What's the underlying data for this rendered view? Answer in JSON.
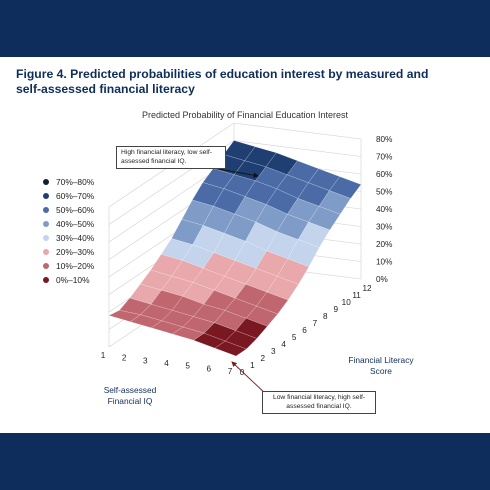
{
  "figure_title": "Figure 4. Predicted probabilities of education interest by measured and self-assessed financial literacy",
  "colors": {
    "band": "#0e2d5c",
    "title": "#0e2d5c"
  },
  "chart_data": {
    "type": "surface",
    "title": "Predicted Probability of Financial Education Interest",
    "x_axis_label": "Financial Literacy Score",
    "y_axis_label": "Self-assessed Financial IQ",
    "z_axis_label": "",
    "x_ticks": [
      "0",
      "1",
      "2",
      "3",
      "4",
      "5",
      "6",
      "7",
      "8",
      "9",
      "10",
      "11",
      "12"
    ],
    "y_ticks": [
      "1",
      "2",
      "3",
      "4",
      "5",
      "6",
      "7"
    ],
    "z_ticks": [
      "0%",
      "10%",
      "20%",
      "30%",
      "40%",
      "50%",
      "60%",
      "70%",
      "80%"
    ],
    "z_range": [
      0,
      80
    ],
    "legend": [
      {
        "label": "70%–80%",
        "color": "#0f1f38"
      },
      {
        "label": "60%–70%",
        "color": "#1f3f73"
      },
      {
        "label": "50%–60%",
        "color": "#4a6ba6"
      },
      {
        "label": "40%–50%",
        "color": "#7f9cc8"
      },
      {
        "label": "30%–40%",
        "color": "#c3d4ec"
      },
      {
        "label": "20%–30%",
        "color": "#e8a8ac"
      },
      {
        "label": "10%–20%",
        "color": "#c0666f"
      },
      {
        "label": "0%–10%",
        "color": "#7a1822"
      }
    ],
    "values": [
      [
        18,
        17,
        20,
        24,
        28,
        33,
        38,
        45,
        52,
        58,
        62,
        66,
        70
      ],
      [
        16,
        16,
        18,
        22,
        26,
        31,
        36,
        43,
        50,
        56,
        60,
        64,
        68
      ],
      [
        14,
        14,
        16,
        20,
        24,
        28,
        33,
        40,
        47,
        53,
        58,
        62,
        66
      ],
      [
        12,
        12,
        14,
        17,
        21,
        25,
        30,
        37,
        44,
        50,
        55,
        59,
        63
      ],
      [
        10,
        10,
        12,
        15,
        18,
        22,
        27,
        33,
        40,
        46,
        51,
        56,
        60
      ],
      [
        7,
        7,
        9,
        12,
        15,
        19,
        24,
        30,
        37,
        43,
        48,
        53,
        57
      ],
      [
        4,
        4,
        6,
        9,
        12,
        16,
        21,
        27,
        34,
        40,
        45,
        50,
        54
      ]
    ],
    "annotations": [
      "High financial literacy, low self-assessed financial IQ.",
      "Low financial literacy, high self-assessed financial IQ."
    ]
  }
}
